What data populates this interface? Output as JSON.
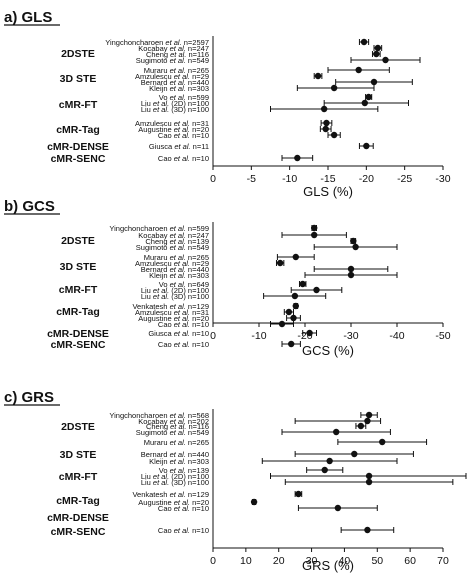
{
  "chart_data": [
    {
      "type": "scatter",
      "panel_label": "a) GLS",
      "xlabel": "GLS (%)",
      "xlim": [
        0,
        -30
      ],
      "xticks": [
        0,
        -5,
        -10,
        -15,
        -20,
        -25,
        -30
      ],
      "xtick_labels": [
        "0",
        "-5",
        "-10",
        "-15",
        "-20",
        "-25",
        "-30"
      ],
      "groups": [
        {
          "name": "2DSTE",
          "rows": [
            {
              "study": "Yingchoncharoen",
              "n": "n=2597",
              "value": -19.7,
              "ci": [
                -19.1,
                -20.3
              ]
            },
            {
              "study": "Kocabay",
              "n": "n=247",
              "value": -21.5,
              "ci": [
                -21.0,
                -22.0
              ]
            },
            {
              "study": "Cheng",
              "n": "n=116",
              "value": -21.3,
              "ci": [
                -20.8,
                -21.8
              ]
            },
            {
              "study": "Sugimoto",
              "n": "n=549",
              "value": -22.5,
              "ci": [
                -18.0,
                -27.0
              ]
            }
          ]
        },
        {
          "name": "3D STE",
          "rows": [
            {
              "study": "Muraru",
              "n": "n=265",
              "value": -19.0,
              "ci": [
                -15.0,
                -23.0
              ]
            },
            {
              "study": "Amzulescu",
              "n": "n=29",
              "value": -13.7,
              "ci": [
                -13.2,
                -14.2
              ]
            },
            {
              "study": "Bernard",
              "n": "n=440",
              "value": -21.0,
              "ci": [
                -16.0,
                -26.0
              ]
            },
            {
              "study": "Kleijn",
              "n": "n=303",
              "value": -15.8,
              "ci": [
                -11.0,
                -21.0
              ]
            }
          ]
        },
        {
          "name": "cMR-FT",
          "rows": [
            {
              "study": "Vo",
              "n": "n=599",
              "value": -20.3,
              "ci": [
                -19.9,
                -20.7
              ]
            },
            {
              "study": "Liu (2D)",
              "n": "n=100",
              "value": -19.8,
              "ci": [
                -14.5,
                -25.5
              ]
            },
            {
              "study": "Liu (3D)",
              "n": "n=100",
              "value": -14.5,
              "ci": [
                -7.5,
                -21.5
              ]
            }
          ]
        },
        {
          "name": "cMR-Tag",
          "rows": [
            {
              "study": "Amzulescu",
              "n": "n=31",
              "value": -14.8,
              "ci": [
                -14.1,
                -15.5
              ]
            },
            {
              "study": "Augustine",
              "n": "n=20",
              "value": -14.7,
              "ci": [
                -14.0,
                -15.4
              ]
            },
            {
              "study": "Cao",
              "n": "n=10",
              "value": -15.8,
              "ci": [
                -15.0,
                -16.6
              ]
            }
          ]
        },
        {
          "name": "cMR-DENSE",
          "rows": [
            {
              "study": "Giusca",
              "n": "n=11",
              "value": -20.0,
              "ci": [
                -19.1,
                -20.9
              ]
            }
          ]
        },
        {
          "name": "cMR-SENC",
          "rows": [
            {
              "study": "Cao",
              "n": "n=10",
              "value": -11.0,
              "ci": [
                -9.0,
                -13.0
              ]
            }
          ]
        }
      ]
    },
    {
      "type": "scatter",
      "panel_label": "b) GCS",
      "xlabel": "GCS (%)",
      "xlim": [
        0,
        -50
      ],
      "xticks": [
        0,
        -10,
        -20,
        -30,
        -40,
        -50
      ],
      "xtick_labels": [
        "0",
        "-10",
        "-20",
        "-30",
        "-40",
        "-50"
      ],
      "groups": [
        {
          "name": "2DSTE",
          "rows": [
            {
              "study": "Yingchoncharoen",
              "n": "n=599",
              "value": -22.0,
              "ci": [
                -21.5,
                -22.5
              ]
            },
            {
              "study": "Kocabay",
              "n": "n=247",
              "value": -22.0,
              "ci": [
                -15.0,
                -29.0
              ]
            },
            {
              "study": "Cheng",
              "n": "n=139",
              "value": -30.5,
              "ci": [
                -30.0,
                -31.0
              ]
            },
            {
              "study": "Sugimoto",
              "n": "n=549",
              "value": -31.0,
              "ci": [
                -22.0,
                -40.0
              ]
            }
          ]
        },
        {
          "name": "3D STE",
          "rows": [
            {
              "study": "Muraru",
              "n": "n=265",
              "value": -18.0,
              "ci": [
                -14.0,
                -22.0
              ]
            },
            {
              "study": "Amzulescu",
              "n": "n=29",
              "value": -14.6,
              "ci": [
                -13.8,
                -15.4
              ]
            },
            {
              "study": "Bernard",
              "n": "n=440",
              "value": -30.0,
              "ci": [
                -22.0,
                -38.0
              ]
            },
            {
              "study": "Kleijn",
              "n": "n=303",
              "value": -30.0,
              "ci": [
                -20.0,
                -40.0
              ]
            }
          ]
        },
        {
          "name": "cMR-FT",
          "rows": [
            {
              "study": "Vo",
              "n": "n=649",
              "value": -19.5,
              "ci": [
                -18.8,
                -20.2
              ]
            },
            {
              "study": "Liu (2D)",
              "n": "n=100",
              "value": -22.5,
              "ci": [
                -17.0,
                -28.0
              ]
            },
            {
              "study": "Liu (3D)",
              "n": "n=100",
              "value": -17.8,
              "ci": [
                -11.0,
                -24.5
              ]
            }
          ]
        },
        {
          "name": "cMR-Tag",
          "rows": [
            {
              "study": "Venkatesh",
              "n": "n=129",
              "value": -18.0,
              "ci": [
                -17.6,
                -18.4
              ]
            },
            {
              "study": "Amzulescu",
              "n": "n=31",
              "value": -16.5,
              "ci": [
                -15.5,
                -17.5
              ]
            },
            {
              "study": "Augustine",
              "n": "n=20",
              "value": -17.5,
              "ci": [
                -16.0,
                -19.0
              ]
            },
            {
              "study": "Cao",
              "n": "n=10",
              "value": -15.0,
              "ci": [
                -12.5,
                -17.5
              ]
            }
          ]
        },
        {
          "name": "cMR-DENSE",
          "rows": [
            {
              "study": "Giusca",
              "n": "n=10",
              "value": -21.0,
              "ci": [
                -19.5,
                -22.5
              ]
            }
          ]
        },
        {
          "name": "cMR-SENC",
          "rows": [
            {
              "study": "Cao",
              "n": "n=10",
              "value": -17.0,
              "ci": [
                -15.0,
                -19.0
              ]
            }
          ]
        }
      ]
    },
    {
      "type": "scatter",
      "panel_label": "c) GRS",
      "xlabel": "GRS (%)",
      "xlim": [
        0,
        70
      ],
      "xticks": [
        0,
        10,
        20,
        30,
        40,
        50,
        60,
        70
      ],
      "xtick_labels": [
        "0",
        "10",
        "20",
        "30",
        "40",
        "50",
        "60",
        "70"
      ],
      "groups": [
        {
          "name": "2DSTE",
          "rows": [
            {
              "study": "Yingchoncharoen",
              "n": "n=568",
              "value": 47.5,
              "ci": [
                45.0,
                50.0
              ]
            },
            {
              "study": "Kocabay",
              "n": "n=202",
              "value": 47.0,
              "ci": [
                25.0,
                51.0
              ]
            },
            {
              "study": "Cheng",
              "n": "n=116",
              "value": 45.0,
              "ci": [
                43.5,
                46.5
              ]
            },
            {
              "study": "Sugimoto",
              "n": "n=549",
              "value": 37.5,
              "ci": [
                21.0,
                54.0
              ]
            }
          ]
        },
        {
          "name": "3D STE",
          "rows": [
            {
              "study": "Muraru",
              "n": "n=265",
              "value": 51.5,
              "ci": [
                38.0,
                65.0
              ]
            },
            {
              "study": "Bernard",
              "n": "n=440",
              "value": 43.0,
              "ci": [
                25.0,
                61.0
              ]
            },
            {
              "study": "Kleijn",
              "n": "n=303",
              "value": 35.5,
              "ci": [
                15.0,
                56.0
              ]
            }
          ]
        },
        {
          "name": "cMR-FT",
          "rows": [
            {
              "study": "Vo",
              "n": "n=139",
              "value": 34.0,
              "ci": [
                28.5,
                39.5
              ]
            },
            {
              "study": "Liu (2D)",
              "n": "n=100",
              "value": 47.5,
              "ci": [
                17.5,
                77.0
              ]
            },
            {
              "study": "Liu (3D)",
              "n": "n=100",
              "value": 47.5,
              "ci": [
                22.0,
                73.0
              ]
            }
          ]
        },
        {
          "name": "cMR-Tag",
          "rows": [
            {
              "study": "Venkatesh",
              "n": "n=129",
              "value": 26.0,
              "ci": [
                25.0,
                27.0
              ]
            },
            {
              "study": "Augustine",
              "n": "n=20",
              "value": 12.5,
              "ci": [
                12.0,
                13.0
              ]
            },
            {
              "study": "Cao",
              "n": "n=10",
              "value": 38.0,
              "ci": [
                26.0,
                50.0
              ]
            }
          ]
        },
        {
          "name": "cMR-DENSE",
          "rows": []
        },
        {
          "name": "cMR-SENC",
          "rows": [
            {
              "study": "Cao",
              "n": "n=10",
              "value": 47.0,
              "ci": [
                39.0,
                55.0
              ]
            }
          ]
        }
      ]
    }
  ]
}
